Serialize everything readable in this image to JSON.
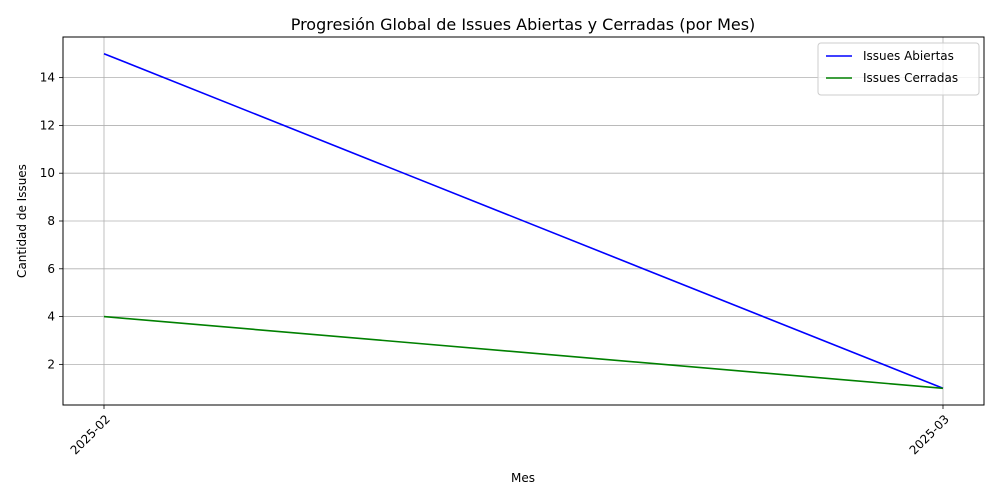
{
  "chart_data": {
    "type": "line",
    "title": "Progresión Global de Issues Abiertas y Cerradas (por Mes)",
    "xlabel": "Mes",
    "ylabel": "Cantidad de Issues",
    "categories": [
      "2025-02",
      "2025-03"
    ],
    "ylim": [
      0.3,
      15.7
    ],
    "yticks": [
      2,
      4,
      6,
      8,
      10,
      12,
      14
    ],
    "grid": true,
    "legend_position": "top-right",
    "series": [
      {
        "name": "Issues Abiertas",
        "values": [
          15,
          1
        ],
        "color": "#0000ff"
      },
      {
        "name": "Issues Cerradas",
        "values": [
          4,
          1
        ],
        "color": "#008000"
      }
    ]
  }
}
